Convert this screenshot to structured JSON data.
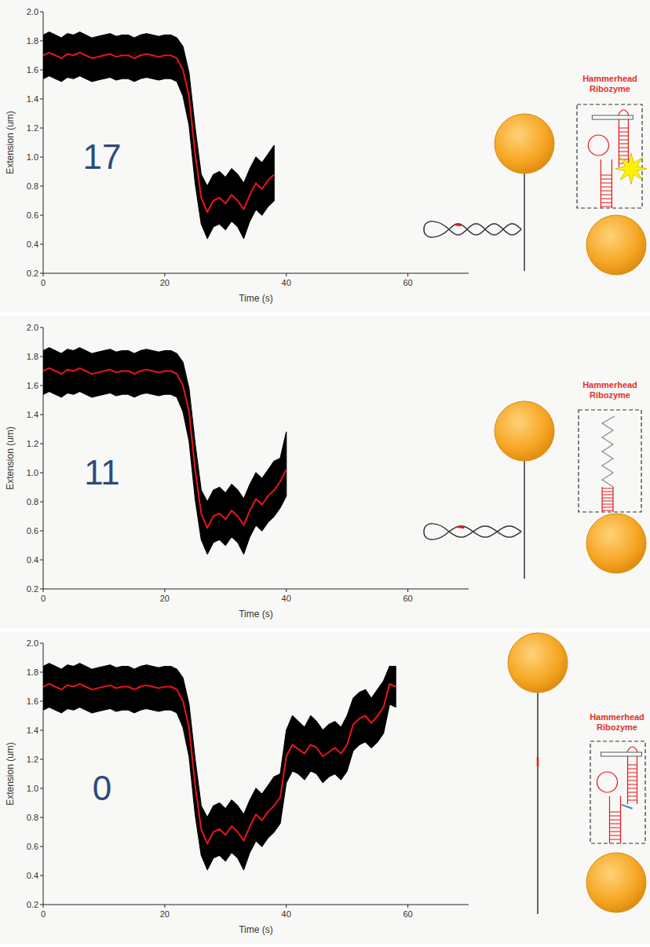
{
  "chart_data": [
    {
      "type": "line",
      "annotations": [
        "17",
        "Hammerhead Ribozyme"
      ],
      "x_label": "Time (s)",
      "y_label": "Extension (um)",
      "xlim": [
        0,
        70
      ],
      "xticks": [
        0,
        20,
        40,
        60
      ],
      "ylim": [
        0.2,
        2.0
      ],
      "yticks": [
        0.2,
        0.4,
        0.6,
        0.8,
        {
          "value": 1,
          "label": "1.0"
        },
        1.2,
        1.4,
        1.6,
        1.8,
        {
          "value": 2,
          "label": "2.0"
        }
      ],
      "grid": false,
      "x": [
        0,
        1,
        2,
        3,
        4,
        5,
        6,
        7,
        8,
        9,
        10,
        11,
        12,
        13,
        14,
        15,
        16,
        17,
        18,
        19,
        20,
        21,
        22,
        23,
        24,
        25,
        26,
        27,
        28,
        29,
        30,
        31,
        32,
        33,
        34,
        35,
        36,
        37,
        38
      ],
      "series": [
        {
          "type": "area",
          "color": "#000000",
          "values": [
            1.84,
            1.86,
            1.84,
            1.82,
            1.85,
            1.84,
            1.86,
            1.84,
            1.82,
            1.83,
            1.84,
            1.85,
            1.83,
            1.84,
            1.84,
            1.82,
            1.84,
            1.85,
            1.84,
            1.83,
            1.84,
            1.84,
            1.82,
            1.76,
            1.58,
            1.2,
            0.88,
            0.8,
            0.88,
            0.9,
            0.86,
            0.92,
            0.88,
            0.82,
            0.92,
            1.0,
            0.96,
            1.02,
            1.08
          ],
          "lower": [
            1.54,
            1.56,
            1.54,
            1.52,
            1.55,
            1.54,
            1.56,
            1.54,
            1.52,
            1.53,
            1.54,
            1.55,
            1.53,
            1.54,
            1.54,
            1.52,
            1.54,
            1.55,
            1.54,
            1.53,
            1.54,
            1.54,
            1.52,
            1.42,
            1.22,
            0.82,
            0.54,
            0.44,
            0.52,
            0.54,
            0.5,
            0.56,
            0.52,
            0.44,
            0.56,
            0.64,
            0.6,
            0.66,
            0.7
          ]
        },
        {
          "type": "line",
          "color": "#e8161c",
          "values": [
            1.7,
            1.72,
            1.7,
            1.68,
            1.71,
            1.7,
            1.72,
            1.7,
            1.68,
            1.69,
            1.7,
            1.71,
            1.69,
            1.7,
            1.7,
            1.68,
            1.7,
            1.71,
            1.7,
            1.69,
            1.7,
            1.7,
            1.68,
            1.6,
            1.42,
            1.02,
            0.72,
            0.62,
            0.7,
            0.72,
            0.68,
            0.74,
            0.7,
            0.64,
            0.74,
            0.82,
            0.78,
            0.84,
            0.88
          ]
        }
      ]
    },
    {
      "type": "line",
      "annotations": [
        "11",
        "Hammerhead Ribozyme"
      ],
      "x_label": "Time (s)",
      "y_label": "Extension (um)",
      "xlim": [
        0,
        70
      ],
      "xticks": [
        0,
        20,
        40,
        60
      ],
      "ylim": [
        0.2,
        2.0
      ],
      "yticks": [
        0.2,
        0.4,
        0.6,
        0.8,
        {
          "value": 1,
          "label": "1.0"
        },
        1.2,
        1.4,
        1.6,
        1.8,
        {
          "value": 2,
          "label": "2.0"
        }
      ],
      "grid": false,
      "x": [
        0,
        1,
        2,
        3,
        4,
        5,
        6,
        7,
        8,
        9,
        10,
        11,
        12,
        13,
        14,
        15,
        16,
        17,
        18,
        19,
        20,
        21,
        22,
        23,
        24,
        25,
        26,
        27,
        28,
        29,
        30,
        31,
        32,
        33,
        34,
        35,
        36,
        37,
        38,
        39,
        40
      ],
      "series": [
        {
          "type": "area",
          "color": "#000000",
          "values": [
            1.84,
            1.86,
            1.84,
            1.82,
            1.85,
            1.84,
            1.86,
            1.84,
            1.82,
            1.83,
            1.84,
            1.85,
            1.83,
            1.84,
            1.84,
            1.82,
            1.84,
            1.85,
            1.84,
            1.83,
            1.84,
            1.84,
            1.82,
            1.76,
            1.58,
            1.2,
            0.88,
            0.8,
            0.88,
            0.9,
            0.86,
            0.92,
            0.88,
            0.82,
            0.92,
            1.0,
            0.96,
            1.02,
            1.08,
            1.1,
            1.28
          ],
          "lower": [
            1.54,
            1.56,
            1.54,
            1.52,
            1.55,
            1.54,
            1.56,
            1.54,
            1.52,
            1.53,
            1.54,
            1.55,
            1.53,
            1.54,
            1.54,
            1.52,
            1.54,
            1.55,
            1.54,
            1.53,
            1.54,
            1.54,
            1.52,
            1.42,
            1.22,
            0.82,
            0.54,
            0.44,
            0.52,
            0.54,
            0.5,
            0.56,
            0.52,
            0.44,
            0.56,
            0.64,
            0.6,
            0.66,
            0.7,
            0.76,
            0.84
          ]
        },
        {
          "type": "line",
          "color": "#e8161c",
          "values": [
            1.7,
            1.72,
            1.7,
            1.68,
            1.71,
            1.7,
            1.72,
            1.7,
            1.68,
            1.69,
            1.7,
            1.71,
            1.69,
            1.7,
            1.7,
            1.68,
            1.7,
            1.71,
            1.7,
            1.69,
            1.7,
            1.7,
            1.68,
            1.6,
            1.42,
            1.02,
            0.72,
            0.62,
            0.7,
            0.72,
            0.68,
            0.74,
            0.7,
            0.64,
            0.74,
            0.82,
            0.78,
            0.84,
            0.88,
            0.94,
            1.02
          ]
        }
      ]
    },
    {
      "type": "line",
      "annotations": [
        "0",
        "Hammerhead Ribozyme"
      ],
      "x_label": "Time (s)",
      "y_label": "Extension (um)",
      "xlim": [
        0,
        70
      ],
      "xticks": [
        0,
        20,
        40,
        60
      ],
      "ylim": [
        0.2,
        2.0
      ],
      "yticks": [
        0.2,
        0.4,
        0.6,
        0.8,
        {
          "value": 1,
          "label": "1.0"
        },
        1.2,
        1.4,
        1.6,
        1.8,
        {
          "value": 2,
          "label": "2.0"
        }
      ],
      "grid": false,
      "x": [
        0,
        1,
        2,
        3,
        4,
        5,
        6,
        7,
        8,
        9,
        10,
        11,
        12,
        13,
        14,
        15,
        16,
        17,
        18,
        19,
        20,
        21,
        22,
        23,
        24,
        25,
        26,
        27,
        28,
        29,
        30,
        31,
        32,
        33,
        34,
        35,
        36,
        37,
        38,
        39,
        40,
        41,
        42,
        43,
        44,
        45,
        46,
        47,
        48,
        49,
        50,
        51,
        52,
        53,
        54,
        55,
        56,
        57,
        58
      ],
      "series": [
        {
          "type": "area",
          "color": "#000000",
          "values": [
            1.84,
            1.86,
            1.84,
            1.82,
            1.85,
            1.84,
            1.86,
            1.84,
            1.82,
            1.83,
            1.84,
            1.85,
            1.83,
            1.84,
            1.84,
            1.82,
            1.84,
            1.85,
            1.84,
            1.83,
            1.84,
            1.84,
            1.82,
            1.76,
            1.58,
            1.2,
            0.88,
            0.8,
            0.88,
            0.9,
            0.86,
            0.92,
            0.88,
            0.82,
            0.92,
            1.0,
            0.96,
            1.02,
            1.08,
            1.1,
            1.4,
            1.5,
            1.46,
            1.42,
            1.5,
            1.46,
            1.4,
            1.44,
            1.46,
            1.42,
            1.5,
            1.62,
            1.66,
            1.68,
            1.62,
            1.68,
            1.74,
            1.84,
            1.84
          ],
          "lower": [
            1.54,
            1.56,
            1.54,
            1.52,
            1.55,
            1.54,
            1.56,
            1.54,
            1.52,
            1.53,
            1.54,
            1.55,
            1.53,
            1.54,
            1.54,
            1.52,
            1.54,
            1.55,
            1.54,
            1.53,
            1.54,
            1.54,
            1.52,
            1.42,
            1.22,
            0.82,
            0.54,
            0.44,
            0.52,
            0.54,
            0.5,
            0.56,
            0.52,
            0.44,
            0.56,
            0.64,
            0.6,
            0.66,
            0.7,
            0.76,
            1.04,
            1.12,
            1.1,
            1.06,
            1.12,
            1.1,
            1.04,
            1.08,
            1.1,
            1.06,
            1.12,
            1.26,
            1.3,
            1.32,
            1.28,
            1.32,
            1.38,
            1.58,
            1.56
          ]
        },
        {
          "type": "line",
          "color": "#e8161c",
          "values": [
            1.7,
            1.72,
            1.7,
            1.68,
            1.71,
            1.7,
            1.72,
            1.7,
            1.68,
            1.69,
            1.7,
            1.71,
            1.69,
            1.7,
            1.7,
            1.68,
            1.7,
            1.71,
            1.7,
            1.69,
            1.7,
            1.7,
            1.68,
            1.6,
            1.42,
            1.02,
            0.72,
            0.62,
            0.7,
            0.72,
            0.68,
            0.74,
            0.7,
            0.64,
            0.74,
            0.82,
            0.78,
            0.84,
            0.88,
            0.94,
            1.22,
            1.3,
            1.27,
            1.24,
            1.3,
            1.28,
            1.22,
            1.25,
            1.28,
            1.24,
            1.3,
            1.44,
            1.48,
            1.5,
            1.45,
            1.5,
            1.56,
            1.72,
            1.7
          ]
        }
      ]
    }
  ]
}
